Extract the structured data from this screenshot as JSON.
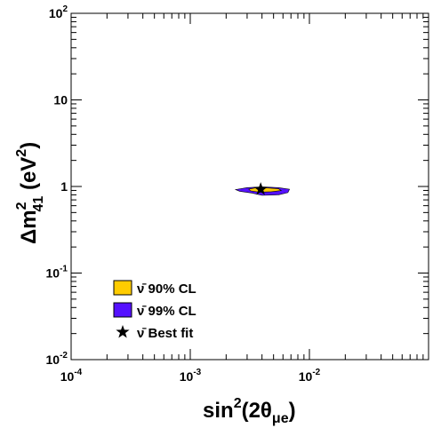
{
  "chart_data": {
    "type": "scatter",
    "x_scale": "log",
    "y_scale": "log",
    "xlim": [
      0.0001,
      0.1
    ],
    "ylim": [
      0.01,
      100
    ],
    "x_tick_labels": [
      {
        "base": "10",
        "exp": "-4",
        "value": 0.0001
      },
      {
        "base": "10",
        "exp": "-3",
        "value": 0.001
      },
      {
        "base": "10",
        "exp": "-2",
        "value": 0.01
      }
    ],
    "y_tick_labels": [
      {
        "base": "10",
        "exp": "-2",
        "value": 0.01
      },
      {
        "base": "10",
        "exp": "-1",
        "value": 0.1
      },
      {
        "base": "",
        "exp": "",
        "text": "1",
        "value": 1
      },
      {
        "base": "",
        "exp": "",
        "text": "10",
        "value": 10
      },
      {
        "base": "10",
        "exp": "2",
        "value": 100
      }
    ],
    "xlabel": {
      "main": "sin",
      "sup": "2",
      "paren_open": "(2θ",
      "sub": "μe",
      "paren_close": ")"
    },
    "ylabel": {
      "main": "Δm",
      "sup": "2",
      "sub": "41",
      "unit_open": " (eV",
      "unit_sup": "2",
      "unit_close": ")"
    },
    "series": [
      {
        "name": "ν̄ 90% CL",
        "color": "#ffcc00",
        "outline": "#000000",
        "region": [
          [
            0.0031,
            0.93
          ],
          [
            0.0036,
            0.97
          ],
          [
            0.0045,
            0.96
          ],
          [
            0.0055,
            0.94
          ],
          [
            0.0058,
            0.9
          ],
          [
            0.0048,
            0.87
          ],
          [
            0.0038,
            0.86
          ],
          [
            0.0032,
            0.89
          ]
        ]
      },
      {
        "name": "ν̄ 99% CL",
        "color": "#5511ff",
        "outline": "#000000",
        "region": [
          [
            0.0024,
            0.92
          ],
          [
            0.003,
            0.97
          ],
          [
            0.004,
            0.99
          ],
          [
            0.0055,
            0.97
          ],
          [
            0.0068,
            0.93
          ],
          [
            0.0066,
            0.85
          ],
          [
            0.0055,
            0.8
          ],
          [
            0.004,
            0.79
          ],
          [
            0.0033,
            0.84
          ],
          [
            0.0026,
            0.88
          ]
        ]
      },
      {
        "name": "ν̄ Best fit",
        "color": "#000000",
        "marker": "star",
        "points": [
          [
            0.0039,
            0.93
          ]
        ]
      }
    ],
    "legend_position": "bottom-left",
    "grid": false
  }
}
